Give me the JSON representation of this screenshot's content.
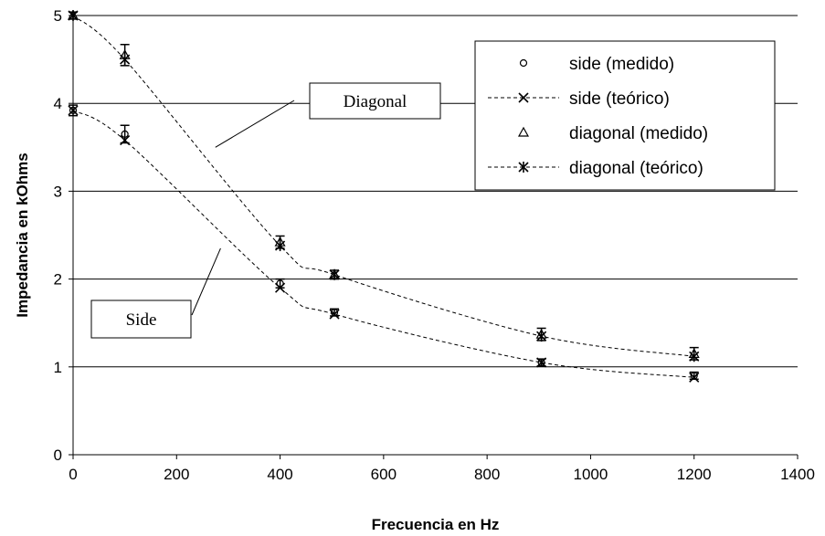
{
  "chart_data": {
    "type": "line",
    "title": "",
    "xlabel": "Frecuencia en Hz",
    "ylabel": "Impedancia en kOhms",
    "xlim": [
      0,
      1400
    ],
    "ylim": [
      0,
      5
    ],
    "xticks": [
      0,
      200,
      400,
      600,
      800,
      1000,
      1200,
      1400
    ],
    "yticks": [
      0,
      1,
      2,
      3,
      4,
      5
    ],
    "grid": "horizontal",
    "legend_position": "top-right",
    "series": [
      {
        "name": "side (medido)",
        "marker": "circle",
        "line": "none",
        "x": [
          0,
          100,
          400,
          505,
          905,
          1200
        ],
        "y": [
          3.92,
          3.65,
          1.95,
          1.62,
          1.05,
          0.9
        ],
        "error": [
          0.06,
          0.1,
          0.05,
          0.04,
          0.04,
          0.04
        ]
      },
      {
        "name": "side  (teórico)",
        "marker": "x",
        "line": "dashed",
        "x": [
          0,
          100,
          400,
          505,
          905,
          1200
        ],
        "y": [
          3.92,
          3.58,
          1.9,
          1.6,
          1.05,
          0.88
        ]
      },
      {
        "name": "diagonal (medido)",
        "marker": "triangle",
        "line": "none",
        "x": [
          0,
          100,
          400,
          505,
          905,
          1200
        ],
        "y": [
          5.0,
          4.55,
          2.42,
          2.05,
          1.37,
          1.15
        ],
        "error": [
          0.04,
          0.12,
          0.07,
          0.05,
          0.07,
          0.07
        ]
      },
      {
        "name": "diagonal (teórico)",
        "marker": "asterisk",
        "line": "dashed",
        "x": [
          0,
          100,
          400,
          505,
          905,
          1200
        ],
        "y": [
          5.0,
          4.5,
          2.38,
          2.05,
          1.35,
          1.12
        ]
      }
    ],
    "annotations": [
      {
        "text": "Diagonal",
        "points_to": [
          275,
          3.5
        ]
      },
      {
        "text": "Side",
        "points_to": [
          285,
          2.35
        ]
      }
    ]
  }
}
